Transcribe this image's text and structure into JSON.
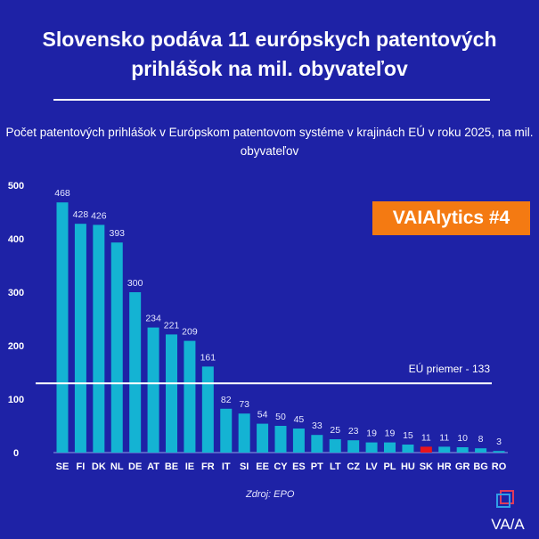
{
  "chart_data": {
    "type": "bar",
    "title": "Slovensko podáva 11 európskych patentových prihlášok na mil. obyvateľov",
    "subtitle": "Počet patentových prihlášok v Európskom patentovom systéme v krajinách EÚ v roku 2025, na mil. obyvateľov",
    "categories": [
      "SE",
      "FI",
      "DK",
      "NL",
      "DE",
      "AT",
      "BE",
      "IE",
      "FR",
      "IT",
      "SI",
      "EE",
      "CY",
      "ES",
      "PT",
      "LT",
      "CZ",
      "LV",
      "PL",
      "HU",
      "SK",
      "HR",
      "GR",
      "BG",
      "RO"
    ],
    "values": [
      468,
      428,
      426,
      393,
      300,
      234,
      221,
      209,
      161,
      82,
      73,
      54,
      50,
      45,
      33,
      25,
      23,
      19,
      19,
      15,
      11,
      11,
      10,
      8,
      3
    ],
    "highlight": "SK",
    "ylim": [
      0,
      500
    ],
    "yticks": [
      0,
      100,
      200,
      300,
      400,
      500
    ],
    "grid": false,
    "reference_line": {
      "value": 133,
      "label": "EÚ priemer - 133"
    },
    "colors": {
      "bar": "#14b3d3",
      "highlight": "#e8141c",
      "background": "#1e22a6",
      "badge": "#f47a12"
    }
  },
  "badge": "VAIAlytics #4",
  "source": "Zdroj: EPO",
  "logo_text": "VAIA"
}
